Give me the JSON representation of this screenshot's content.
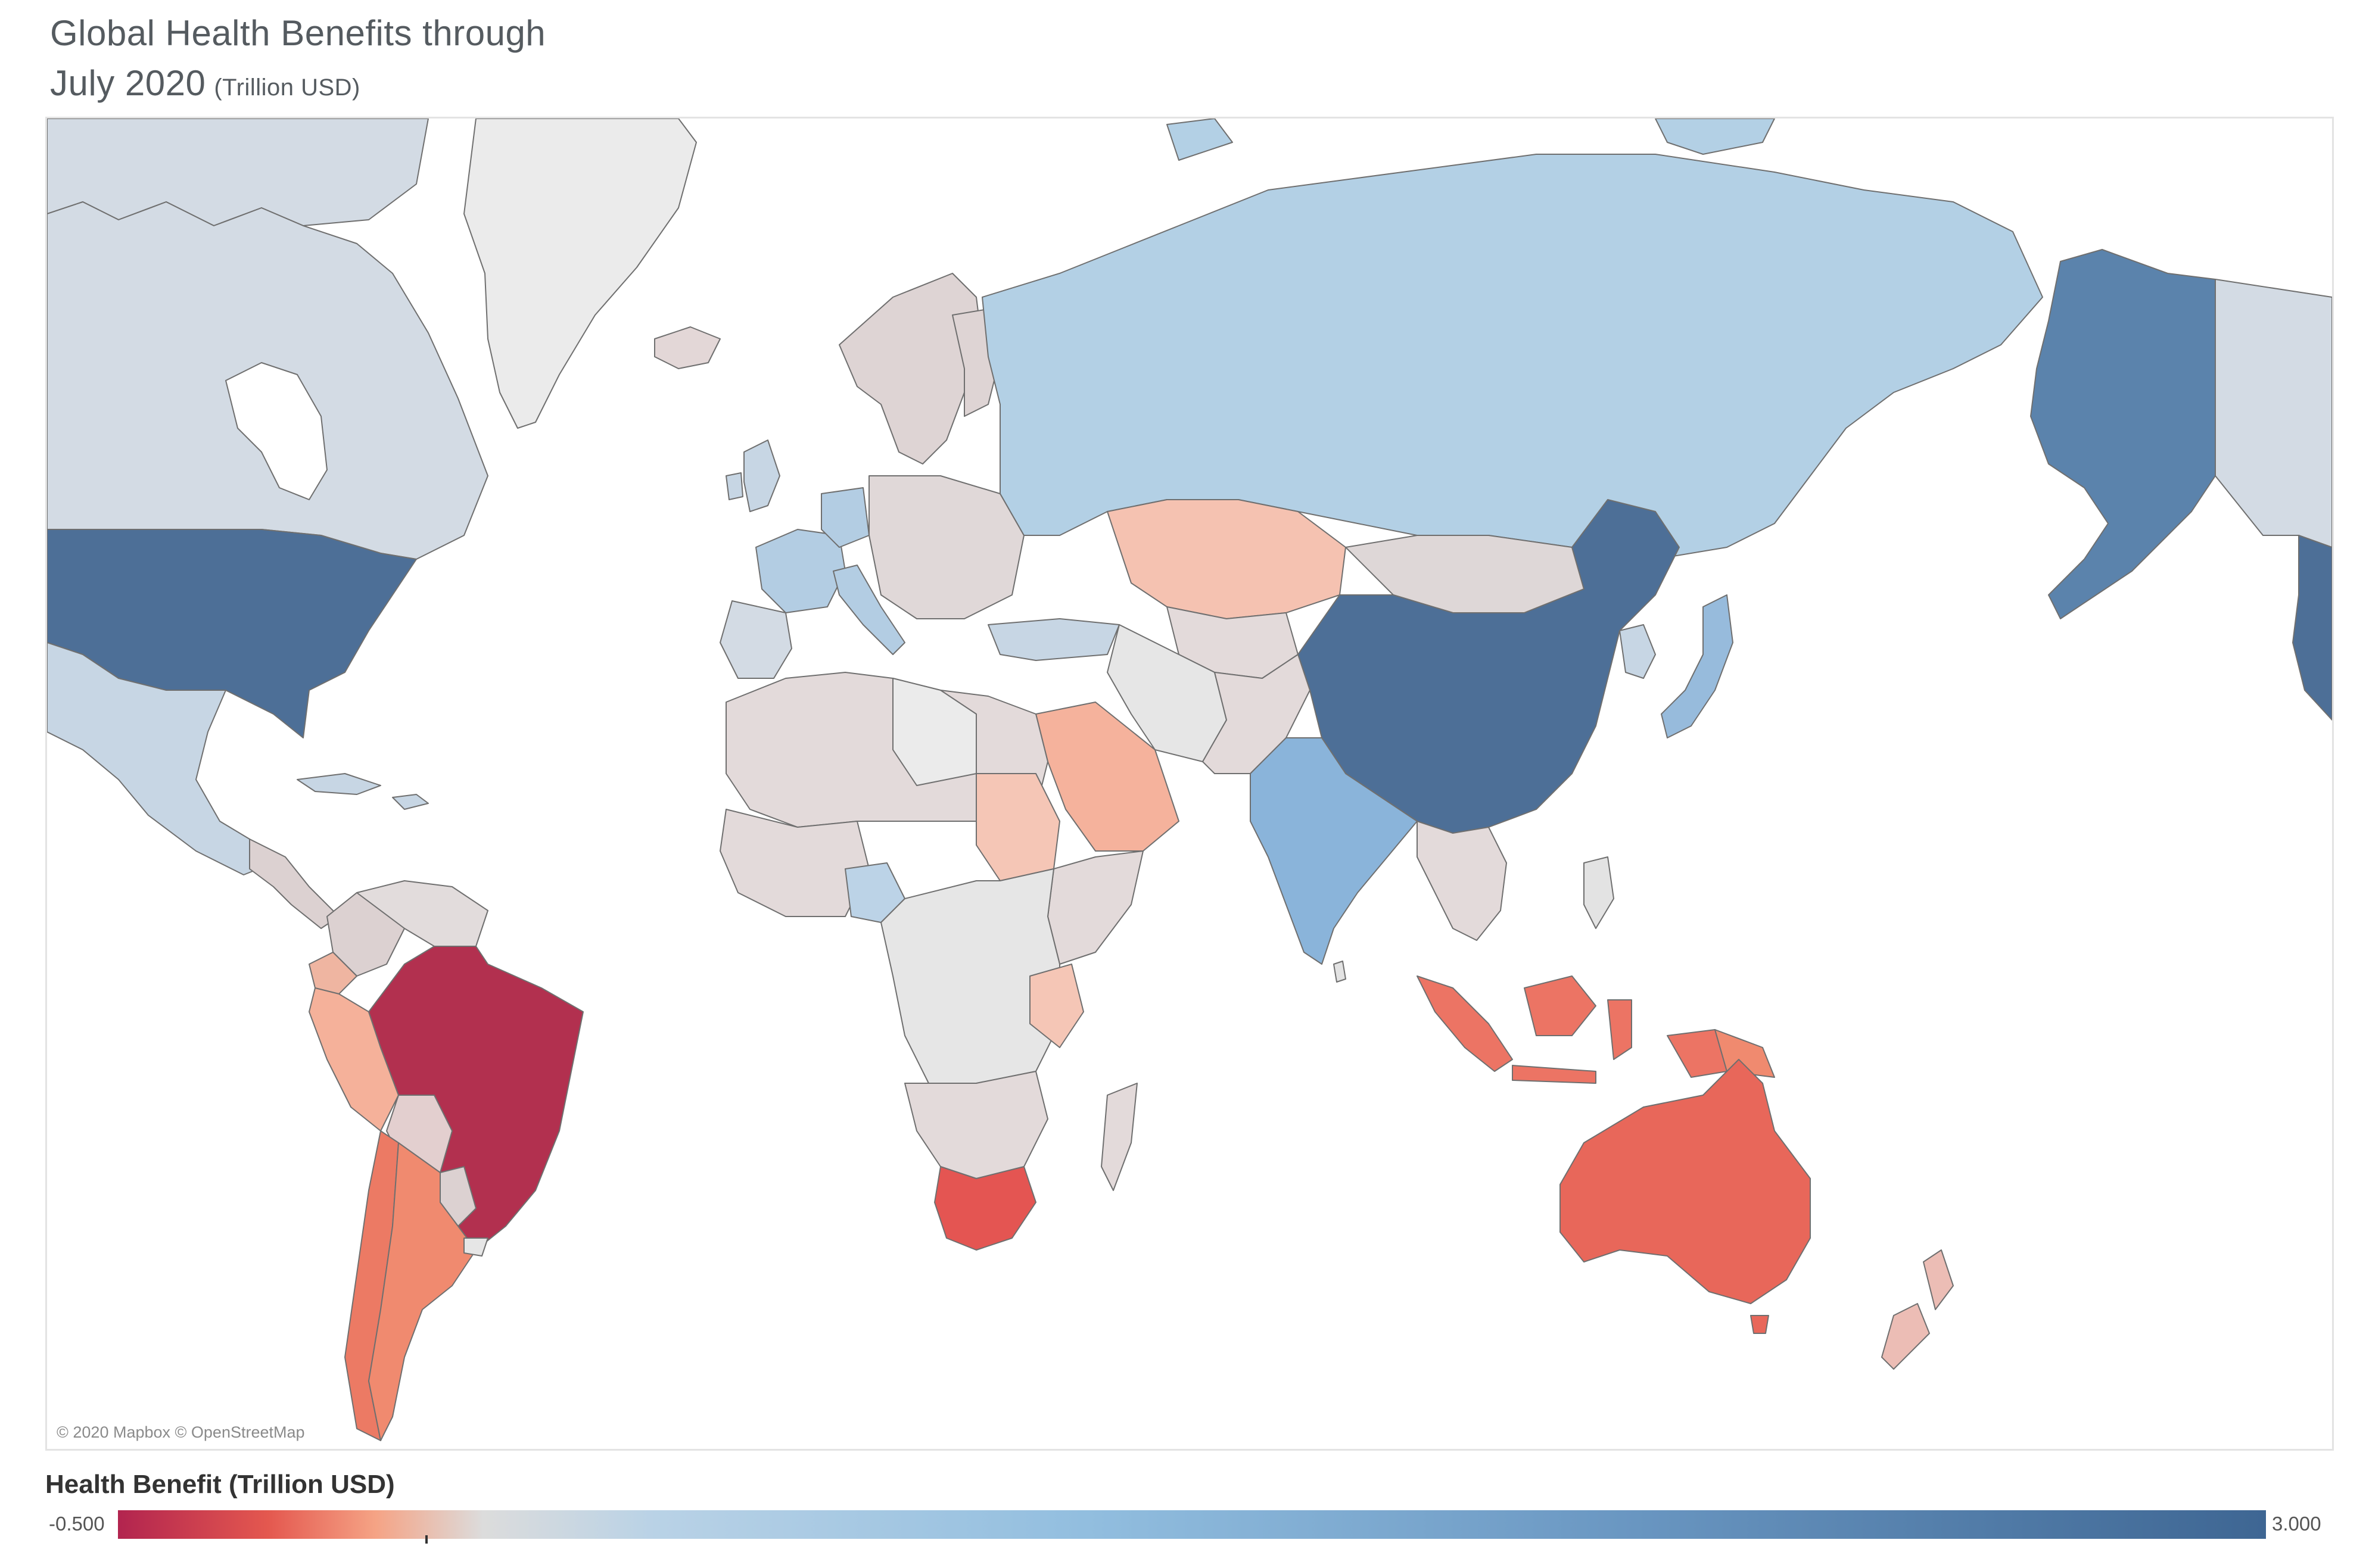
{
  "title": {
    "line1": "Global Health Benefits through",
    "line2": "July 2020",
    "unit": "(Trillion USD)"
  },
  "map": {
    "attribution": "© 2020 Mapbox © OpenStreetMap",
    "measure": "Health Benefit (Trillion USD)",
    "projection": "web-mercator",
    "background": "#ffffff",
    "country_values_trillion_usd": {
      "brazil": -0.45,
      "south_africa": -0.3,
      "australia": -0.28,
      "argentina": -0.2,
      "indonesia": -0.18,
      "chile": -0.18,
      "papua_new_guinea": -0.15,
      "peru": -0.05,
      "saudi_arabia": -0.05,
      "kazakhstan": 0.0,
      "colombia": 0.0,
      "sudan": 0.05,
      "new_zealand": 0.1,
      "mongolia": 0.3,
      "africa_other": 0.35,
      "venezuela": 0.4,
      "middle_east_other": 0.45,
      "greenland": 0.45,
      "nordic_baltic_eastern_europe": 0.35,
      "mexico": 0.8,
      "canada": 0.85,
      "russia": 1.0,
      "nigeria": 1.05,
      "japan": 1.2,
      "germany": 1.3,
      "france": 1.3,
      "italy": 1.3,
      "india": 1.6,
      "united_states": 2.6,
      "alaska": 2.6,
      "china": 3.0
    }
  },
  "legend": {
    "title": "Health Benefit (Trillion USD)",
    "min_label": "-0.500",
    "max_label": "3.000",
    "min": -0.5,
    "max": 3.0,
    "colors": [
      "#b2244f",
      "#e4584f",
      "#f5a385",
      "#dcdcdc",
      "#b9d2e6",
      "#92bedf",
      "#6a97c2",
      "#3e6693"
    ]
  }
}
